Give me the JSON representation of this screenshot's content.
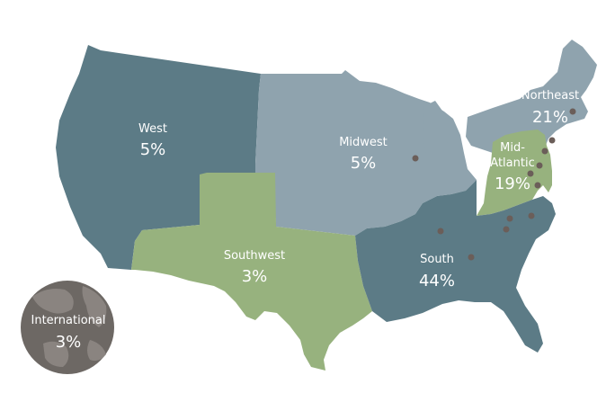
{
  "colors": {
    "dark": "#5c7b86",
    "light": "#8fa3ae",
    "green": "#97b27e",
    "dot": "#6b5e59",
    "globe": "#6d6864",
    "globe_land": "#8a8480"
  },
  "regions": {
    "west": {
      "name": "West",
      "pct": "5%"
    },
    "midwest": {
      "name": "Midwest",
      "pct": "5%"
    },
    "northeast": {
      "name": "Northeast",
      "pct": "21%"
    },
    "midatlantic": {
      "name_line1": "Mid-",
      "name_line2": "Atlantic",
      "pct": "19%"
    },
    "southwest": {
      "name": "Southwest",
      "pct": "3%"
    },
    "south": {
      "name": "South",
      "pct": "44%"
    },
    "international": {
      "name": "International",
      "pct": "3%"
    }
  }
}
